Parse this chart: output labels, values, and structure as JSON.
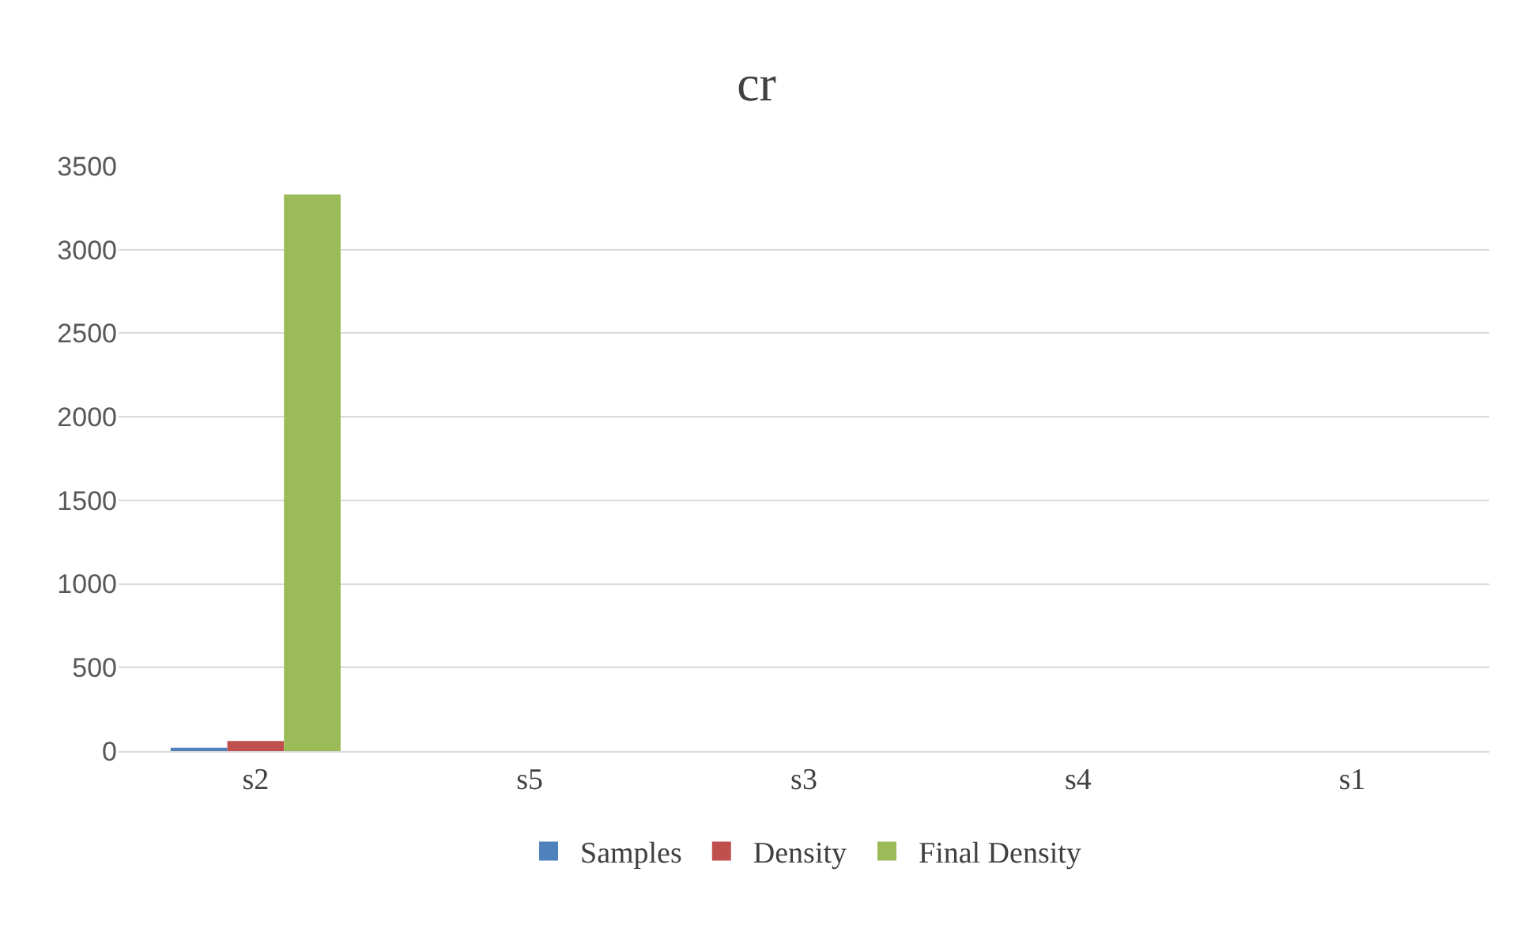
{
  "chart_data": {
    "type": "bar",
    "title": "cr",
    "categories": [
      "s2",
      "s5",
      "s3",
      "s4",
      "s1"
    ],
    "series": [
      {
        "name": "Samples",
        "color": "#4f81bd",
        "values": [
          20,
          0,
          0,
          0,
          0
        ]
      },
      {
        "name": "Density",
        "color": "#c0504d",
        "values": [
          60,
          0,
          0,
          0,
          0
        ]
      },
      {
        "name": "Final Density",
        "color": "#9bbb59",
        "values": [
          3330,
          0,
          0,
          0,
          0
        ]
      }
    ],
    "ylim": [
      0,
      3500
    ],
    "yticks": [
      0,
      500,
      1000,
      1500,
      2000,
      2500,
      3000,
      3500
    ],
    "grid": "y",
    "legend": "bottom"
  }
}
